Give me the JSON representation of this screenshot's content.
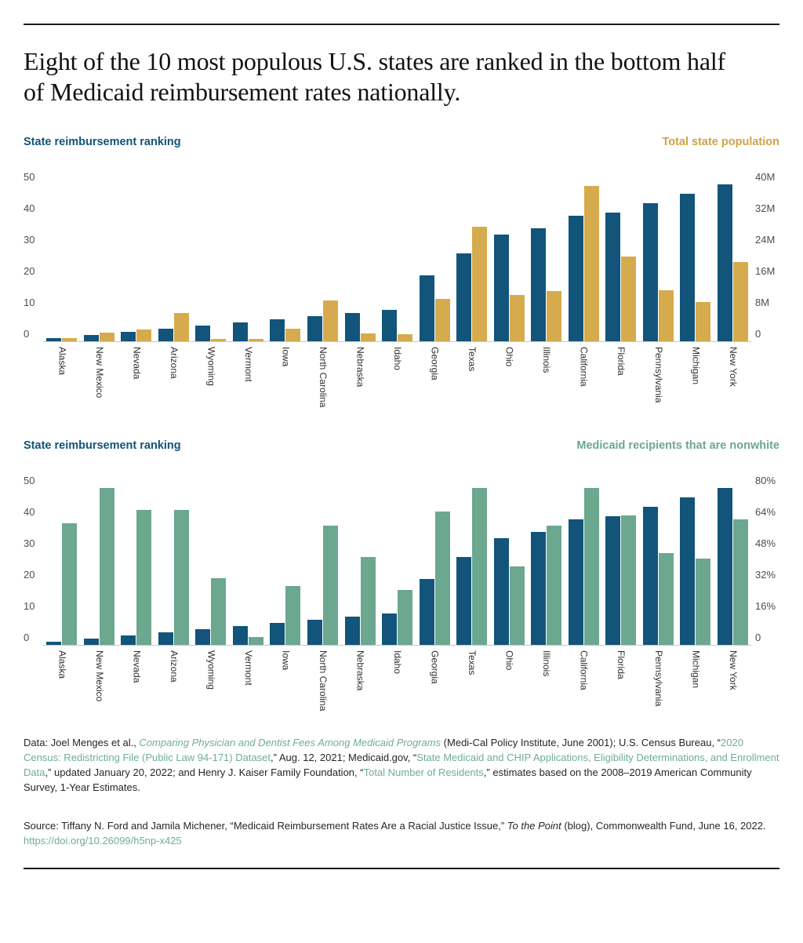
{
  "title": "Eight of the 10 most populous U.S. states are ranked in the bottom half of Medicaid reimbursement rates nationally.",
  "colors": {
    "ranking_blue": "#12547A",
    "population_gold": "#D5AB4D",
    "nonwhite_green": "#6CA78F",
    "rule_black": "#1a1a1a",
    "link_teal": "#6FAE93"
  },
  "chart_data": [
    {
      "type": "bar",
      "grid": "off",
      "legend_position": "top",
      "left_axis": {
        "label": "State reimbursement ranking",
        "max": 50,
        "ticks": [
          0,
          10,
          20,
          30,
          40,
          50
        ]
      },
      "right_axis": {
        "label": "Total state population",
        "max": 40,
        "ticks": [
          "0",
          "8M",
          "16M",
          "24M",
          "32M",
          "40M"
        ],
        "tick_values": [
          0,
          8,
          16,
          24,
          32,
          40
        ]
      },
      "categories": [
        "Alaska",
        "New Mexico",
        "Nevada",
        "Arizona",
        "Wyoming",
        "Vermont",
        "Iowa",
        "North Carolina",
        "Nebraska",
        "Idaho",
        "Georgia",
        "Texas",
        "Ohio",
        "Illinois",
        "California",
        "Florida",
        "Pennsylvania",
        "Michigan",
        "New York"
      ],
      "series": [
        {
          "name": "State reimbursement ranking",
          "axis": "left",
          "color": "#12547A",
          "values": [
            1,
            2,
            3,
            4,
            5,
            6,
            7,
            8,
            9,
            10,
            21,
            28,
            34,
            36,
            40,
            41,
            44,
            47,
            50
          ]
        },
        {
          "name": "Total state population (millions)",
          "axis": "right",
          "color": "#D5AB4D",
          "values": [
            0.73,
            2.12,
            3.1,
            7.15,
            0.58,
            0.64,
            3.19,
            10.44,
            1.96,
            1.84,
            10.71,
            29.15,
            11.8,
            12.81,
            39.54,
            21.54,
            13.0,
            10.08,
            20.2
          ]
        }
      ]
    },
    {
      "type": "bar",
      "grid": "off",
      "legend_position": "top",
      "left_axis": {
        "label": "State reimbursement ranking",
        "max": 50,
        "ticks": [
          0,
          10,
          20,
          30,
          40,
          50
        ]
      },
      "right_axis": {
        "label": "Medicaid recipients that are nonwhite",
        "max": 80,
        "ticks": [
          "0",
          "16%",
          "32%",
          "48%",
          "64%",
          "80%"
        ],
        "tick_values": [
          0,
          16,
          32,
          48,
          64,
          80
        ]
      },
      "categories": [
        "Alaska",
        "New Mexico",
        "Nevada",
        "Arizona",
        "Wyoming",
        "Vermont",
        "Iowa",
        "North Carolina",
        "Nebraska",
        "Idaho",
        "Georgia",
        "Texas",
        "Ohio",
        "Illinois",
        "California",
        "Florida",
        "Pennsylvania",
        "Michigan",
        "New York"
      ],
      "series": [
        {
          "name": "State reimbursement ranking",
          "axis": "left",
          "color": "#12547A",
          "values": [
            1,
            2,
            3,
            4,
            5,
            6,
            7,
            8,
            9,
            10,
            21,
            28,
            34,
            36,
            40,
            41,
            44,
            47,
            50
          ]
        },
        {
          "name": "Medicaid recipients that are nonwhite (%)",
          "axis": "right",
          "color": "#6CA78F",
          "values": [
            62,
            80,
            69,
            69,
            34,
            4,
            30,
            61,
            45,
            28,
            68,
            80,
            40,
            61,
            80,
            66,
            47,
            44,
            64
          ]
        }
      ]
    }
  ],
  "data_note_segments": [
    {
      "text": "Data: Joel Menges et al., "
    },
    {
      "text": "Comparing Physician and Dentist Fees Among Medicaid Programs",
      "link": true,
      "italic": true
    },
    {
      "text": " (Medi-Cal Policy Institute, June 2001); U.S. Census Bureau, “"
    },
    {
      "text": "2020 Census: Redistricting File (Public Law 94-171) Dataset",
      "link": true
    },
    {
      "text": ",” Aug. 12, 2021; Medicaid.gov, “"
    },
    {
      "text": "State Medicaid and CHIP Applications, Eligibility Determinations, and Enrollment Data",
      "link": true
    },
    {
      "text": ",” updated January 20, 2022; and Henry J. Kaiser Family Foundation, “"
    },
    {
      "text": "Total Number of Residents",
      "link": true
    },
    {
      "text": ",” estimates based on the 2008–2019 American Community Survey, 1-Year Estimates."
    }
  ],
  "source_segments": [
    {
      "text": "Source: Tiffany N. Ford and Jamila Michener, “Medicaid Reimbursement Rates Are a Racial Justice Issue,” "
    },
    {
      "text": "To the Point",
      "italic": true
    },
    {
      "text": " (blog), Commonwealth Fund, June 16, 2022. "
    },
    {
      "text": "https://doi.org/10.26099/h5np-x425",
      "link": true
    }
  ]
}
